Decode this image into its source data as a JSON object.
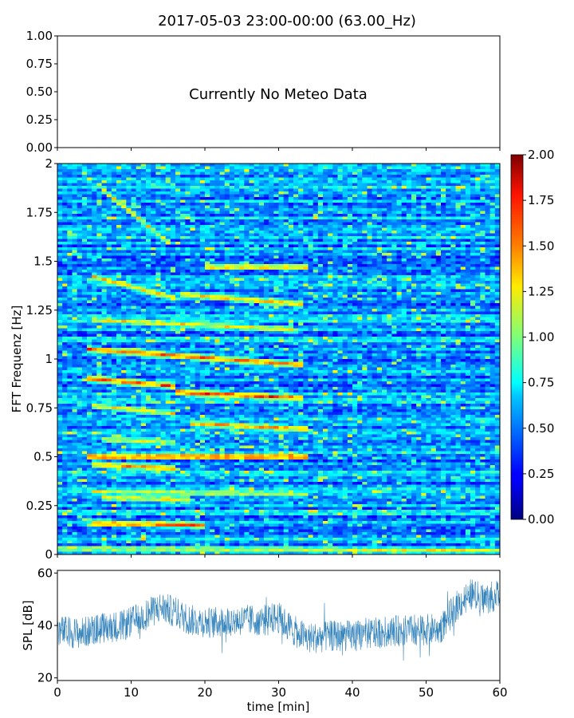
{
  "title": "2017-05-03 23:00-00:00 (63.00_Hz)",
  "colors": {
    "spl_line": "#1f77b4",
    "background": "#ffffff",
    "axis": "#000000"
  },
  "chart_data": [
    {
      "type": "table",
      "panel": "meteo",
      "message": "Currently No Meteo Data",
      "ylim": [
        0,
        1
      ],
      "yticks": [
        "0.00",
        "0.25",
        "0.50",
        "0.75",
        "1.00"
      ],
      "xlabel": "",
      "ylabel": ""
    },
    {
      "type": "heatmap",
      "panel": "spectrogram",
      "ylabel": "FFT Frequenz [Hz]",
      "xlim": [
        0,
        60
      ],
      "ylim": [
        0,
        2
      ],
      "yticks": [
        "0",
        "0.25",
        "0.5",
        "0.75",
        "1",
        "1.25",
        "1.5",
        "1.75",
        "2"
      ],
      "colorscale": "jet",
      "colorbar": {
        "range": [
          0,
          2
        ],
        "ticks": [
          "0.00",
          "0.25",
          "0.50",
          "0.75",
          "1.00",
          "1.25",
          "1.50",
          "1.75",
          "2.00"
        ]
      },
      "background_level": 0.35,
      "harmonic_bands": [
        {
          "freq_start": 1.87,
          "freq_end": 1.6,
          "t_start": 6,
          "t_end": 15,
          "level": 1.2
        },
        {
          "freq_start": 1.47,
          "freq_end": 1.47,
          "t_start": 20,
          "t_end": 34,
          "level": 1.35
        },
        {
          "freq_start": 1.42,
          "freq_end": 1.31,
          "t_start": 5,
          "t_end": 16,
          "level": 1.3
        },
        {
          "freq_start": 1.33,
          "freq_end": 1.28,
          "t_start": 17,
          "t_end": 33,
          "level": 1.3
        },
        {
          "freq_start": 1.2,
          "freq_end": 1.15,
          "t_start": 5,
          "t_end": 32,
          "level": 1.2
        },
        {
          "freq_start": 1.05,
          "freq_end": 0.97,
          "t_start": 4,
          "t_end": 33,
          "level": 1.5
        },
        {
          "freq_start": 0.9,
          "freq_end": 0.86,
          "t_start": 4,
          "t_end": 16,
          "level": 1.5
        },
        {
          "freq_start": 0.83,
          "freq_end": 0.8,
          "t_start": 16,
          "t_end": 33,
          "level": 1.55
        },
        {
          "freq_start": 0.76,
          "freq_end": 0.72,
          "t_start": 5,
          "t_end": 16,
          "level": 1.2
        },
        {
          "freq_start": 0.67,
          "freq_end": 0.64,
          "t_start": 18,
          "t_end": 34,
          "level": 1.35
        },
        {
          "freq_start": 0.59,
          "freq_end": 0.57,
          "t_start": 6,
          "t_end": 16,
          "level": 1.1
        },
        {
          "freq_start": 0.5,
          "freq_end": 0.5,
          "t_start": 4,
          "t_end": 34,
          "level": 1.6
        },
        {
          "freq_start": 0.46,
          "freq_end": 0.44,
          "t_start": 5,
          "t_end": 16,
          "level": 1.4
        },
        {
          "freq_start": 0.32,
          "freq_end": 0.31,
          "t_start": 5,
          "t_end": 34,
          "level": 1.1
        },
        {
          "freq_start": 0.29,
          "freq_end": 0.28,
          "t_start": 6,
          "t_end": 18,
          "level": 1.2
        },
        {
          "freq_start": 0.16,
          "freq_end": 0.15,
          "t_start": 5,
          "t_end": 20,
          "level": 1.5
        },
        {
          "freq_start": 0.03,
          "freq_end": 0.02,
          "t_start": 0,
          "t_end": 60,
          "level": 1.1
        }
      ]
    },
    {
      "type": "line",
      "panel": "spl",
      "xlabel": "time [min]",
      "ylabel": "SPL [dB]",
      "xlim": [
        0,
        60
      ],
      "ylim": [
        19,
        61
      ],
      "xticks": [
        "0",
        "10",
        "20",
        "30",
        "40",
        "50",
        "60"
      ],
      "yticks": [
        "20",
        "40",
        "60"
      ],
      "series": [
        {
          "x": [
            0,
            3,
            6,
            9,
            12,
            14,
            16,
            18,
            21,
            24,
            27,
            30,
            32,
            34,
            37,
            40,
            43,
            46,
            49,
            52,
            54,
            56,
            58,
            60
          ],
          "y": [
            38,
            37,
            39,
            40,
            44,
            47,
            45,
            42,
            41,
            42,
            42,
            43,
            38,
            35,
            36,
            36,
            37,
            38,
            38,
            39,
            47,
            52,
            50,
            52
          ]
        }
      ]
    }
  ]
}
